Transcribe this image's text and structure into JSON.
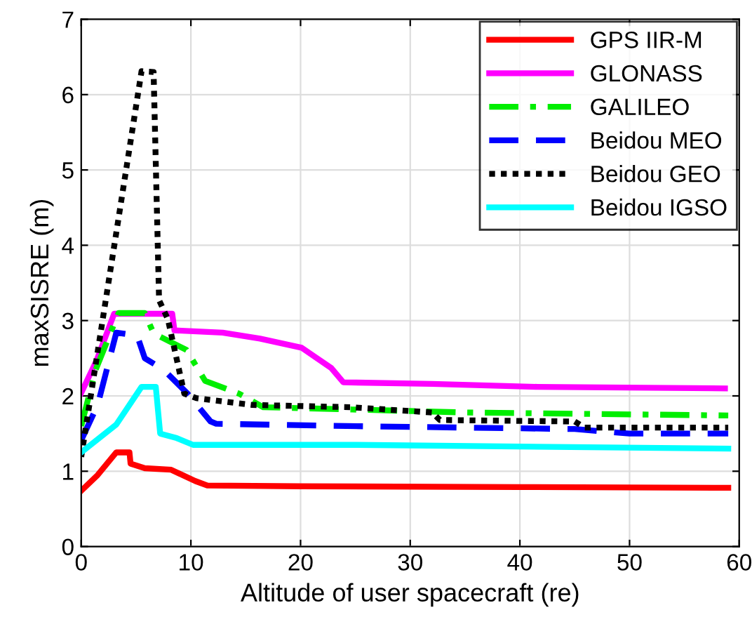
{
  "chart_data": {
    "type": "line",
    "xlabel": "Altitude of user spacecraft (re)",
    "ylabel": "maxSISRE (m)",
    "xlim": [
      0,
      60
    ],
    "xticks": [
      0,
      10,
      20,
      30,
      40,
      50,
      60
    ],
    "ylim": [
      0,
      7
    ],
    "yticks": [
      0,
      1,
      2,
      3,
      4,
      5,
      6,
      7
    ],
    "grid": true,
    "legend": "top right",
    "series": [
      {
        "name": "GPS IIR-M",
        "color": "#ff0000",
        "line_style": "solid",
        "x": [
          0,
          1.5,
          3.2,
          4.4,
          4.5,
          5.8,
          8.2,
          10.4,
          11.5,
          20,
          40,
          59
        ],
        "values": [
          0.74,
          0.95,
          1.25,
          1.25,
          1.1,
          1.04,
          1.02,
          0.87,
          0.81,
          0.8,
          0.79,
          0.78
        ]
      },
      {
        "name": "GLONASS",
        "color": "#ff00ff",
        "line_style": "solid",
        "x": [
          0,
          1.4,
          3.0,
          8.3,
          8.5,
          12.9,
          16.3,
          20.1,
          22.8,
          23.9,
          32,
          41.6,
          58.7
        ],
        "values": [
          2.04,
          2.47,
          3.09,
          3.09,
          2.87,
          2.84,
          2.76,
          2.64,
          2.37,
          2.18,
          2.16,
          2.12,
          2.1
        ]
      },
      {
        "name": "GALILEO",
        "color": "#00ee00",
        "line_style": "dashdot",
        "x": [
          0,
          1.3,
          3.4,
          5.8,
          6.6,
          9.6,
          11.3,
          14.4,
          16.6,
          24.7,
          35,
          59
        ],
        "values": [
          1.6,
          2.34,
          3.1,
          3.1,
          2.83,
          2.61,
          2.2,
          2.03,
          1.85,
          1.82,
          1.78,
          1.74
        ]
      },
      {
        "name": "Beidou MEO",
        "color": "#0000ff",
        "line_style": "dashed",
        "x": [
          0,
          1.5,
          3.2,
          5.1,
          5.8,
          7.5,
          9.7,
          11.8,
          12.3,
          24.2,
          45,
          50,
          59
        ],
        "values": [
          1.41,
          1.88,
          2.84,
          2.8,
          2.5,
          2.35,
          2.03,
          1.66,
          1.63,
          1.6,
          1.56,
          1.5,
          1.5
        ]
      },
      {
        "name": "Beidou GEO",
        "color": "#000000",
        "line_style": "dotted",
        "x": [
          0,
          5.5,
          6.6,
          7.1,
          7.9,
          9.4,
          10.5,
          15.6,
          24.6,
          32,
          32.7,
          45,
          45.9,
          59
        ],
        "values": [
          1.19,
          6.31,
          6.3,
          3.27,
          3.02,
          2.03,
          1.97,
          1.88,
          1.85,
          1.78,
          1.68,
          1.66,
          1.58,
          1.58
        ]
      },
      {
        "name": "Beidou IGSO",
        "color": "#00ffff",
        "line_style": "solid",
        "x": [
          0,
          3.2,
          5.5,
          6.8,
          7.2,
          8.7,
          10.2,
          25,
          59
        ],
        "values": [
          1.25,
          1.62,
          2.12,
          2.12,
          1.5,
          1.44,
          1.35,
          1.35,
          1.3
        ]
      }
    ]
  }
}
